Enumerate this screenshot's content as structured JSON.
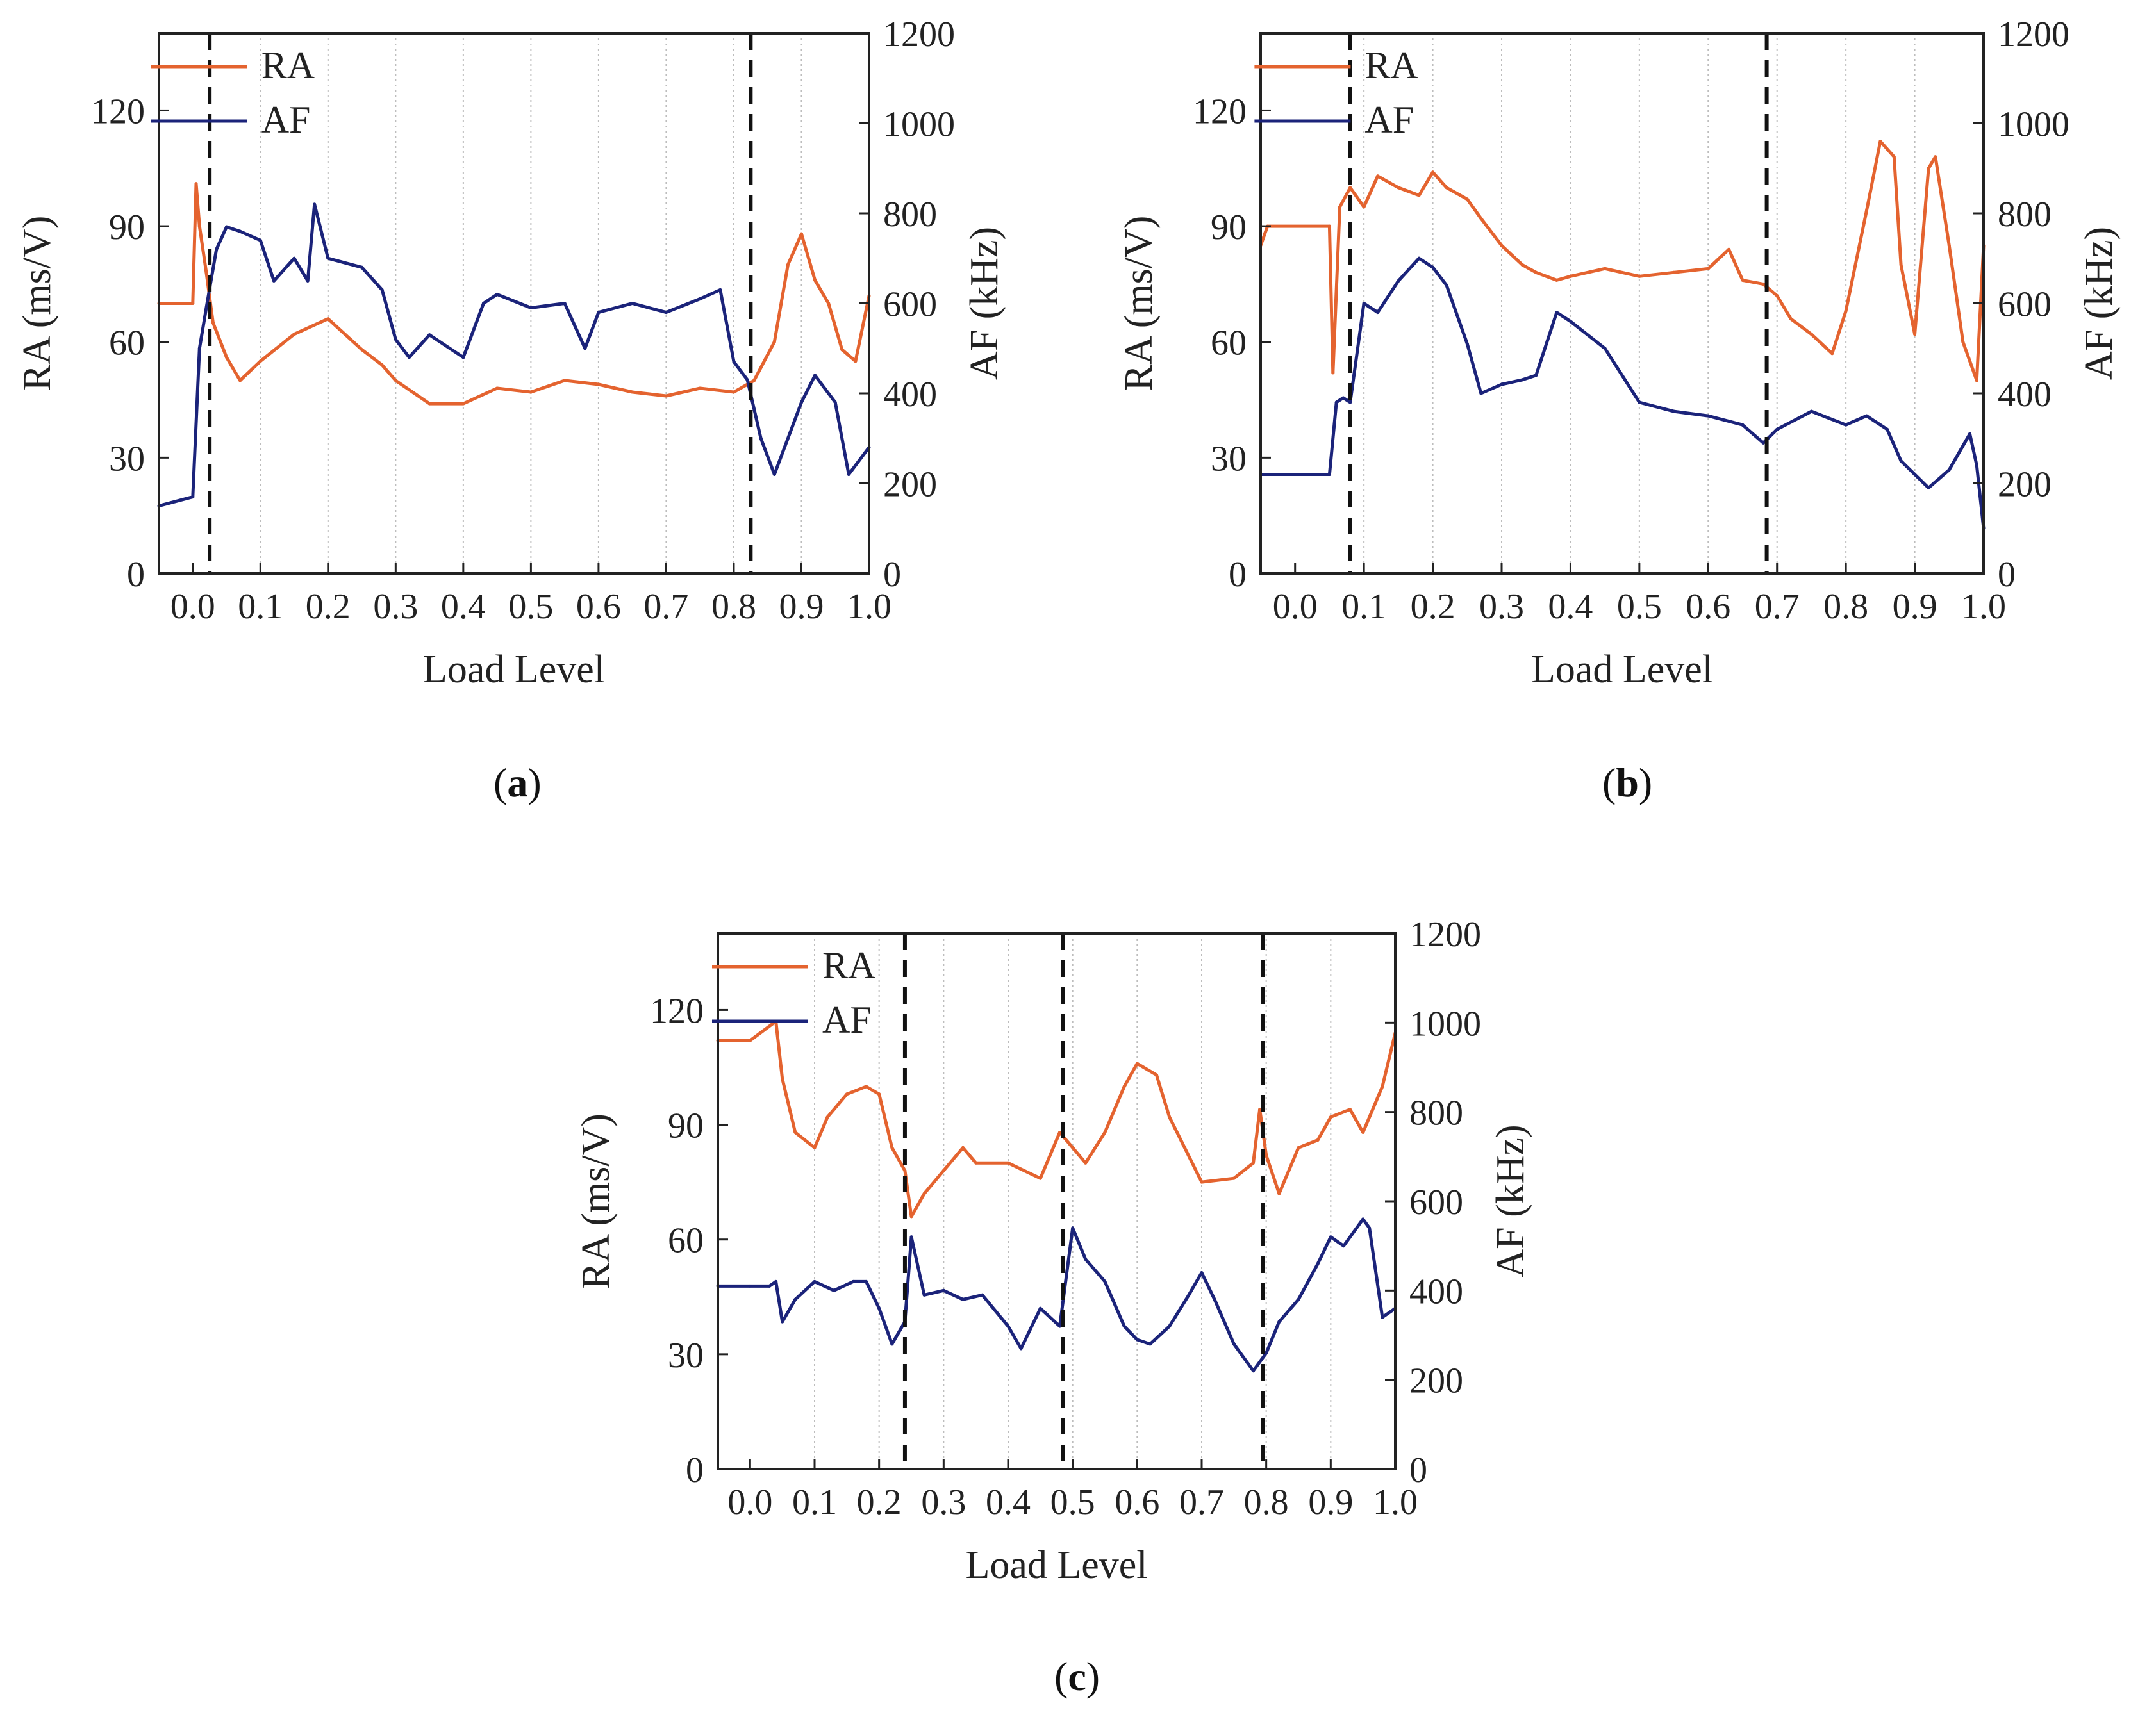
{
  "colors": {
    "ra": "#e4632f",
    "af": "#1b237a",
    "grid": "#bdbdbd",
    "axis": "#222222",
    "dashed": "#111111"
  },
  "panel_labels": [
    {
      "open": "(",
      "letter": "a",
      "close": ")"
    },
    {
      "open": "(",
      "letter": "b",
      "close": ")"
    },
    {
      "open": "(",
      "letter": "c",
      "close": ")"
    }
  ],
  "chart_data": [
    {
      "type": "line",
      "id": "a",
      "xlabel": "Load Level",
      "ylabel": "RA (ms/V)",
      "y2label": "AF (kHz)",
      "xlim": [
        -0.05,
        1.0
      ],
      "ylim": [
        0,
        140
      ],
      "y2lim": [
        0,
        1200
      ],
      "x_ticks": [
        "0.0",
        "0.1",
        "0.2",
        "0.3",
        "0.4",
        "0.5",
        "0.6",
        "0.7",
        "0.8",
        "0.9",
        "1.0"
      ],
      "y_ticks": [
        "0",
        "30",
        "60",
        "90",
        "120"
      ],
      "y2_ticks": [
        "0",
        "200",
        "400",
        "600",
        "800",
        "1000",
        "1200"
      ],
      "legend": {
        "position": "top-left",
        "entries": [
          "RA",
          "AF"
        ]
      },
      "vlines": [
        0.025,
        0.825
      ],
      "series": [
        {
          "name": "RA",
          "axis": "left",
          "x": [
            -0.05,
            0.0,
            0.005,
            0.01,
            0.02,
            0.03,
            0.05,
            0.07,
            0.1,
            0.15,
            0.2,
            0.25,
            0.28,
            0.3,
            0.35,
            0.4,
            0.45,
            0.5,
            0.55,
            0.6,
            0.65,
            0.7,
            0.75,
            0.8,
            0.83,
            0.86,
            0.88,
            0.9,
            0.92,
            0.94,
            0.96,
            0.98,
            1.0
          ],
          "values": [
            70,
            70,
            101,
            90,
            78,
            65,
            56,
            50,
            55,
            62,
            66,
            58,
            54,
            50,
            44,
            44,
            48,
            47,
            50,
            49,
            47,
            46,
            48,
            47,
            50,
            60,
            80,
            88,
            76,
            70,
            58,
            55,
            72
          ]
        },
        {
          "name": "AF",
          "axis": "right",
          "x": [
            -0.05,
            0.0,
            0.01,
            0.02,
            0.035,
            0.05,
            0.07,
            0.1,
            0.12,
            0.15,
            0.17,
            0.18,
            0.2,
            0.25,
            0.28,
            0.3,
            0.32,
            0.35,
            0.4,
            0.43,
            0.45,
            0.5,
            0.55,
            0.58,
            0.6,
            0.65,
            0.7,
            0.75,
            0.78,
            0.8,
            0.82,
            0.84,
            0.86,
            0.9,
            0.92,
            0.95,
            0.97,
            1.0
          ],
          "values": [
            150,
            170,
            500,
            590,
            720,
            770,
            760,
            740,
            650,
            700,
            650,
            820,
            700,
            680,
            630,
            520,
            480,
            530,
            480,
            600,
            620,
            590,
            600,
            500,
            580,
            600,
            580,
            610,
            630,
            470,
            430,
            300,
            220,
            380,
            440,
            380,
            220,
            280
          ]
        }
      ]
    },
    {
      "type": "line",
      "id": "b",
      "xlabel": "Load Level",
      "ylabel": "RA (ms/V)",
      "y2label": "AF (kHz)",
      "xlim": [
        -0.05,
        1.0
      ],
      "ylim": [
        0,
        140
      ],
      "y2lim": [
        0,
        1200
      ],
      "x_ticks": [
        "0.0",
        "0.1",
        "0.2",
        "0.3",
        "0.4",
        "0.5",
        "0.6",
        "0.7",
        "0.8",
        "0.9",
        "1.0"
      ],
      "y_ticks": [
        "0",
        "30",
        "60",
        "90",
        "120"
      ],
      "y2_ticks": [
        "0",
        "200",
        "400",
        "600",
        "800",
        "1000",
        "1200"
      ],
      "legend": {
        "position": "top-left",
        "entries": [
          "RA",
          "AF"
        ]
      },
      "vlines": [
        0.08,
        0.685
      ],
      "series": [
        {
          "name": "RA",
          "axis": "left",
          "x": [
            -0.05,
            -0.04,
            0.05,
            0.055,
            0.065,
            0.08,
            0.1,
            0.12,
            0.15,
            0.18,
            0.2,
            0.22,
            0.25,
            0.27,
            0.3,
            0.33,
            0.35,
            0.38,
            0.4,
            0.45,
            0.5,
            0.55,
            0.6,
            0.63,
            0.65,
            0.68,
            0.7,
            0.72,
            0.75,
            0.78,
            0.8,
            0.83,
            0.85,
            0.87,
            0.88,
            0.9,
            0.92,
            0.93,
            0.95,
            0.97,
            0.99,
            1.0
          ],
          "values": [
            85,
            90,
            90,
            52,
            95,
            100,
            95,
            103,
            100,
            98,
            104,
            100,
            97,
            92,
            85,
            80,
            78,
            76,
            77,
            79,
            77,
            78,
            79,
            84,
            76,
            75,
            72,
            66,
            62,
            57,
            68,
            94,
            112,
            108,
            80,
            62,
            105,
            108,
            85,
            60,
            50,
            85
          ]
        },
        {
          "name": "AF",
          "axis": "right",
          "x": [
            -0.05,
            0.05,
            0.06,
            0.07,
            0.08,
            0.1,
            0.12,
            0.15,
            0.18,
            0.2,
            0.22,
            0.25,
            0.27,
            0.3,
            0.33,
            0.35,
            0.38,
            0.4,
            0.45,
            0.5,
            0.55,
            0.6,
            0.65,
            0.68,
            0.7,
            0.75,
            0.8,
            0.83,
            0.86,
            0.88,
            0.9,
            0.92,
            0.95,
            0.98,
            0.99,
            1.0
          ],
          "values": [
            220,
            220,
            380,
            390,
            380,
            600,
            580,
            650,
            700,
            680,
            640,
            510,
            400,
            420,
            430,
            440,
            580,
            560,
            500,
            380,
            360,
            350,
            330,
            290,
            320,
            360,
            330,
            350,
            320,
            250,
            220,
            190,
            230,
            310,
            240,
            100
          ]
        }
      ]
    },
    {
      "type": "line",
      "id": "c",
      "xlabel": "Load Level",
      "ylabel": "RA (ms/V)",
      "y2label": "AF (kHz)",
      "xlim": [
        -0.05,
        1.0
      ],
      "ylim": [
        0,
        140
      ],
      "y2lim": [
        0,
        1200
      ],
      "x_ticks": [
        "0.0",
        "0.1",
        "0.2",
        "0.3",
        "0.4",
        "0.5",
        "0.6",
        "0.7",
        "0.8",
        "0.9",
        "1.0"
      ],
      "y_ticks": [
        "0",
        "30",
        "60",
        "90",
        "120"
      ],
      "y2_ticks": [
        "0",
        "200",
        "400",
        "600",
        "800",
        "1000",
        "1200"
      ],
      "legend": {
        "position": "top-left",
        "entries": [
          "RA",
          "AF"
        ]
      },
      "vlines": [
        0.24,
        0.485,
        0.795
      ],
      "series": [
        {
          "name": "RA",
          "axis": "left",
          "x": [
            -0.05,
            0.0,
            0.04,
            0.05,
            0.07,
            0.1,
            0.12,
            0.15,
            0.18,
            0.2,
            0.22,
            0.24,
            0.25,
            0.27,
            0.3,
            0.33,
            0.35,
            0.4,
            0.45,
            0.48,
            0.5,
            0.52,
            0.55,
            0.58,
            0.6,
            0.63,
            0.65,
            0.7,
            0.75,
            0.78,
            0.79,
            0.8,
            0.82,
            0.85,
            0.88,
            0.9,
            0.93,
            0.95,
            0.98,
            1.0
          ],
          "values": [
            112,
            112,
            117,
            102,
            88,
            84,
            92,
            98,
            100,
            98,
            84,
            78,
            66,
            72,
            78,
            84,
            80,
            80,
            76,
            88,
            84,
            80,
            88,
            100,
            106,
            103,
            92,
            75,
            76,
            80,
            94,
            82,
            72,
            84,
            86,
            92,
            94,
            88,
            100,
            114
          ]
        },
        {
          "name": "AF",
          "axis": "right",
          "x": [
            -0.05,
            0.0,
            0.03,
            0.04,
            0.05,
            0.07,
            0.1,
            0.13,
            0.16,
            0.18,
            0.2,
            0.22,
            0.24,
            0.25,
            0.27,
            0.3,
            0.33,
            0.36,
            0.4,
            0.42,
            0.45,
            0.48,
            0.5,
            0.52,
            0.55,
            0.58,
            0.6,
            0.62,
            0.65,
            0.68,
            0.7,
            0.72,
            0.75,
            0.78,
            0.8,
            0.82,
            0.85,
            0.88,
            0.9,
            0.92,
            0.95,
            0.96,
            0.98,
            1.0
          ],
          "values": [
            410,
            410,
            410,
            420,
            330,
            380,
            420,
            400,
            420,
            420,
            360,
            280,
            330,
            520,
            390,
            400,
            380,
            390,
            320,
            270,
            360,
            320,
            540,
            470,
            420,
            320,
            290,
            280,
            320,
            390,
            440,
            380,
            280,
            220,
            260,
            330,
            380,
            460,
            520,
            500,
            560,
            540,
            340,
            360
          ]
        }
      ]
    }
  ]
}
